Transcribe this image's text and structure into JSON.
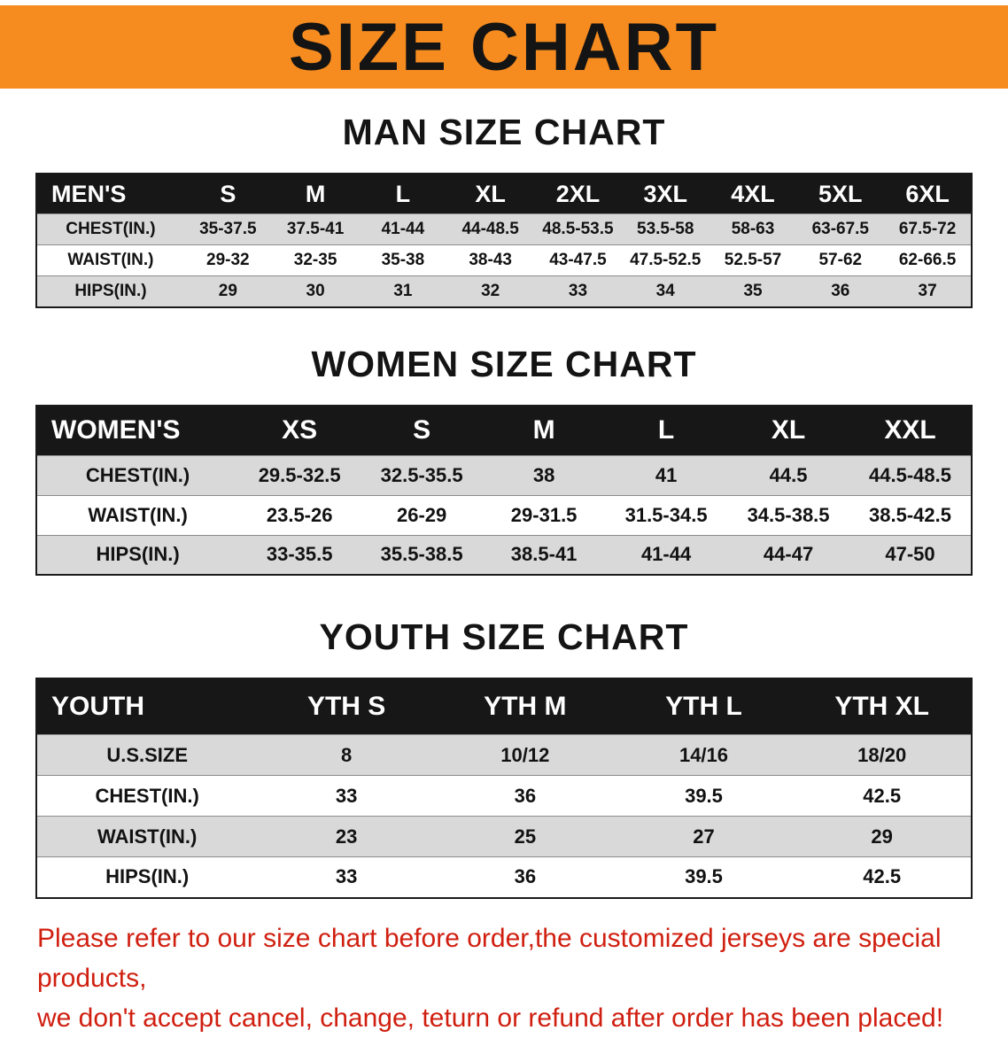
{
  "banner": {
    "title": "SIZE CHART",
    "bg_color": "#f68b1f"
  },
  "sections": [
    {
      "heading": "MAN SIZE CHART",
      "table": {
        "header": [
          "MEN'S",
          "S",
          "M",
          "L",
          "XL",
          "2XL",
          "3XL",
          "4XL",
          "5XL",
          "6XL"
        ],
        "rows": [
          [
            "CHEST(IN.)",
            "35-37.5",
            "37.5-41",
            "41-44",
            "44-48.5",
            "48.5-53.5",
            "53.5-58",
            "58-63",
            "63-67.5",
            "67.5-72"
          ],
          [
            "WAIST(IN.)",
            "29-32",
            "32-35",
            "35-38",
            "38-43",
            "43-47.5",
            "47.5-52.5",
            "52.5-57",
            "57-62",
            "62-66.5"
          ],
          [
            "HIPS(IN.)",
            "29",
            "30",
            "31",
            "32",
            "33",
            "34",
            "35",
            "36",
            "37"
          ]
        ]
      }
    },
    {
      "heading": "WOMEN SIZE CHART",
      "table": {
        "header": [
          "WOMEN'S",
          "XS",
          "S",
          "M",
          "L",
          "XL",
          "XXL"
        ],
        "rows": [
          [
            "CHEST(IN.)",
            "29.5-32.5",
            "32.5-35.5",
            "38",
            "41",
            "44.5",
            "44.5-48.5"
          ],
          [
            "WAIST(IN.)",
            "23.5-26",
            "26-29",
            "29-31.5",
            "31.5-34.5",
            "34.5-38.5",
            "38.5-42.5"
          ],
          [
            "HIPS(IN.)",
            "33-35.5",
            "35.5-38.5",
            "38.5-41",
            "41-44",
            "44-47",
            "47-50"
          ]
        ]
      }
    },
    {
      "heading": "YOUTH SIZE CHART",
      "table": {
        "header": [
          "YOUTH",
          "YTH S",
          "YTH M",
          "YTH L",
          "YTH XL"
        ],
        "rows": [
          [
            "U.S.SIZE",
            "8",
            "10/12",
            "14/16",
            "18/20"
          ],
          [
            "CHEST(IN.)",
            "33",
            "36",
            "39.5",
            "42.5"
          ],
          [
            "WAIST(IN.)",
            "23",
            "25",
            "27",
            "29"
          ],
          [
            "HIPS(IN.)",
            "33",
            "36",
            "39.5",
            "42.5"
          ]
        ]
      }
    }
  ],
  "disclaimer": {
    "line1": "Please refer to our size chart before order,the customized jerseys are special products,",
    "line2": "we don't accept cancel, change, teturn or refund after order has been placed!",
    "color": "#d01f10"
  }
}
